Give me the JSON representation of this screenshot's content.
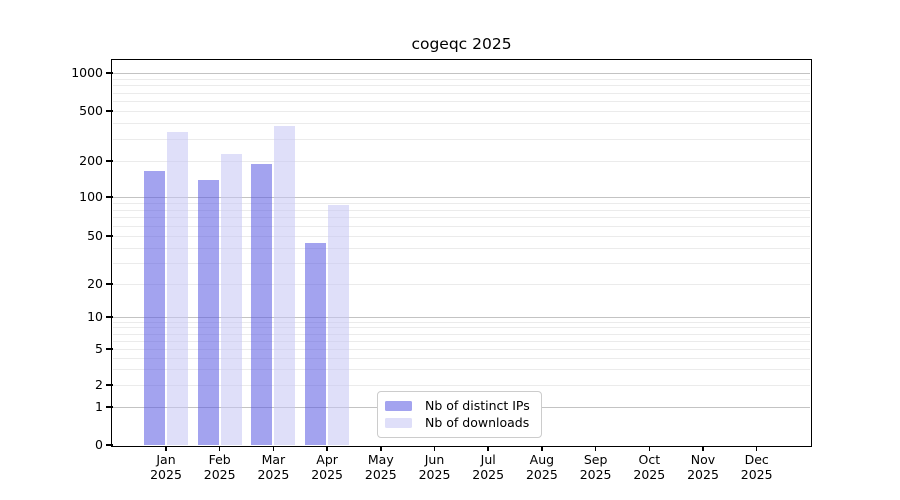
{
  "figure": {
    "title": "cogeqc 2025"
  },
  "chart_data": {
    "type": "bar",
    "title": "cogeqc 2025",
    "categories": [
      "Jan",
      "Feb",
      "Mar",
      "Apr",
      "May",
      "Jun",
      "Jul",
      "Aug",
      "Sep",
      "Oct",
      "Nov",
      "Dec"
    ],
    "category_year": "2025",
    "series": [
      {
        "name": "Nb of distinct IPs",
        "color": "#a3a3ef",
        "fill": "rgba(88,88,226,0.55)",
        "values": [
          165,
          140,
          190,
          44,
          null,
          null,
          null,
          null,
          null,
          null,
          null,
          null
        ]
      },
      {
        "name": "Nb of downloads",
        "color": "#dfdff9",
        "fill": "rgba(197,197,244,0.55)",
        "values": [
          340,
          228,
          378,
          87,
          null,
          null,
          null,
          null,
          null,
          null,
          null,
          null
        ]
      }
    ],
    "xlabel": "",
    "ylabel": "",
    "yticks": [
      0,
      1,
      2,
      5,
      10,
      20,
      50,
      100,
      200,
      500,
      1000
    ],
    "yscale": "log-like with zero baseline",
    "ylim": [
      0,
      1150
    ],
    "grid": "horizontal only; light minor lines each mantissa step, darker lines at powers of 10",
    "legend_position": "inside lower center",
    "colors": {
      "axis": "#000000",
      "grid_minor": "#ebebeb",
      "grid_major": "#c3c3c3",
      "legend_border": "#cccccc",
      "background": "#ffffff"
    }
  }
}
